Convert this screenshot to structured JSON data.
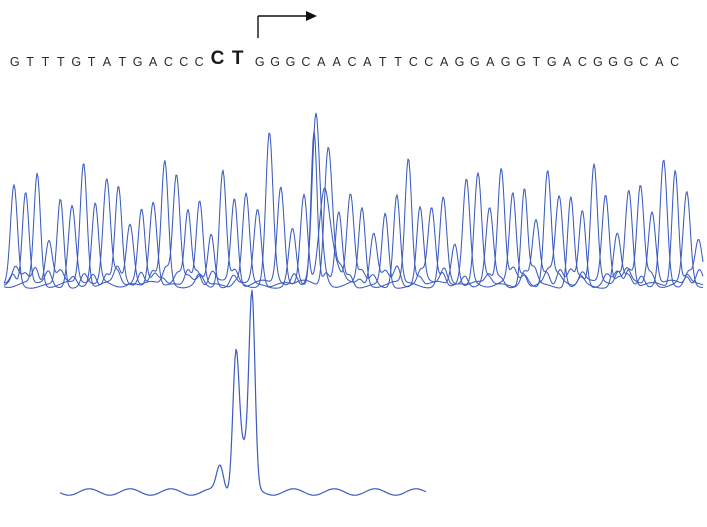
{
  "sequence": {
    "bases": [
      "G",
      "T",
      "T",
      "T",
      "G",
      "T",
      "A",
      "T",
      "G",
      "A",
      "C",
      "C",
      "C",
      "C",
      "T",
      "G",
      "G",
      "G",
      "C",
      "A",
      "A",
      "C",
      "A",
      "T",
      "T",
      "C",
      "C",
      "A",
      "G",
      "G",
      "A",
      "G",
      "G",
      "T",
      "G",
      "A",
      "C",
      "G",
      "G",
      "G",
      "C",
      "A",
      "C"
    ],
    "highlight_indices": [
      13,
      14
    ]
  },
  "trace_color": "#3b5bbf",
  "arrow_color": "#111111"
}
